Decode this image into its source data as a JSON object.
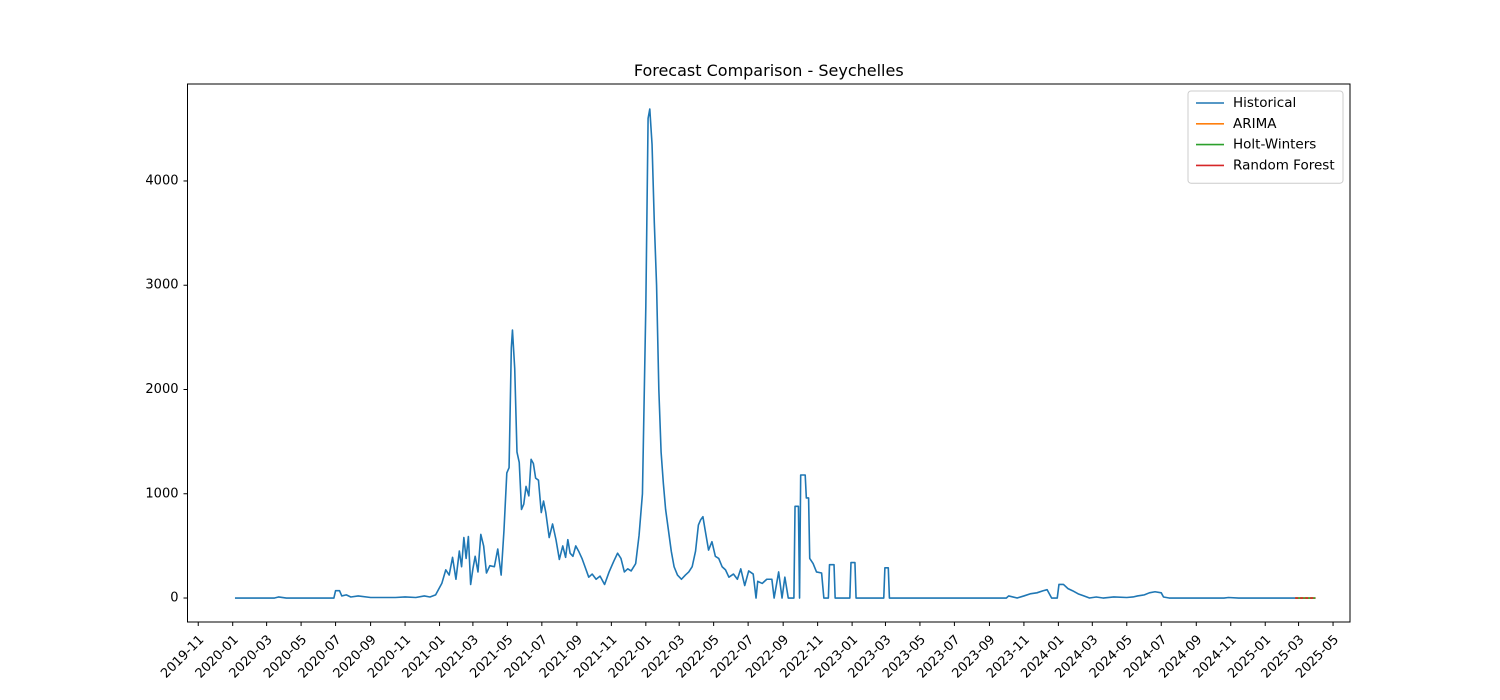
{
  "chart_data": {
    "type": "line",
    "title": "Forecast Comparison - Seychelles",
    "xlabel": "",
    "ylabel": "",
    "xlim": [
      "2019-10-13",
      "2025-05-31"
    ],
    "ylim": [
      -230,
      4930
    ],
    "x_ticks": [
      "2019-11",
      "2020-01",
      "2020-03",
      "2020-05",
      "2020-07",
      "2020-09",
      "2020-11",
      "2021-01",
      "2021-03",
      "2021-05",
      "2021-07",
      "2021-09",
      "2021-11",
      "2022-01",
      "2022-03",
      "2022-05",
      "2022-07",
      "2022-09",
      "2022-11",
      "2023-01",
      "2023-03",
      "2023-05",
      "2023-07",
      "2023-09",
      "2023-11",
      "2024-01",
      "2024-03",
      "2024-05",
      "2024-07",
      "2024-09",
      "2024-11",
      "2025-01",
      "2025-03",
      "2025-05"
    ],
    "y_ticks": [
      0,
      1000,
      2000,
      3000,
      4000
    ],
    "grid": false,
    "legend_position": "top-right",
    "series": [
      {
        "name": "Historical",
        "color": "#1f77b4",
        "points": [
          [
            "2020-01-05",
            0
          ],
          [
            "2020-03-15",
            0
          ],
          [
            "2020-03-22",
            10
          ],
          [
            "2020-04-05",
            0
          ],
          [
            "2020-06-28",
            0
          ],
          [
            "2020-07-01",
            70
          ],
          [
            "2020-07-08",
            70
          ],
          [
            "2020-07-12",
            20
          ],
          [
            "2020-07-20",
            30
          ],
          [
            "2020-07-28",
            10
          ],
          [
            "2020-08-10",
            20
          ],
          [
            "2020-09-01",
            5
          ],
          [
            "2020-10-15",
            5
          ],
          [
            "2020-11-01",
            10
          ],
          [
            "2020-11-20",
            5
          ],
          [
            "2020-12-05",
            20
          ],
          [
            "2020-12-15",
            10
          ],
          [
            "2020-12-25",
            30
          ],
          [
            "2021-01-05",
            140
          ],
          [
            "2021-01-12",
            270
          ],
          [
            "2021-01-18",
            220
          ],
          [
            "2021-01-24",
            390
          ],
          [
            "2021-01-30",
            180
          ],
          [
            "2021-02-05",
            450
          ],
          [
            "2021-02-09",
            300
          ],
          [
            "2021-02-13",
            580
          ],
          [
            "2021-02-17",
            380
          ],
          [
            "2021-02-21",
            590
          ],
          [
            "2021-02-25",
            130
          ],
          [
            "2021-03-01",
            280
          ],
          [
            "2021-03-05",
            400
          ],
          [
            "2021-03-10",
            250
          ],
          [
            "2021-03-15",
            610
          ],
          [
            "2021-03-20",
            500
          ],
          [
            "2021-03-25",
            240
          ],
          [
            "2021-03-31",
            310
          ],
          [
            "2021-04-08",
            300
          ],
          [
            "2021-04-14",
            470
          ],
          [
            "2021-04-20",
            220
          ],
          [
            "2021-04-25",
            650
          ],
          [
            "2021-04-30",
            1200
          ],
          [
            "2021-05-04",
            1250
          ],
          [
            "2021-05-08",
            2400
          ],
          [
            "2021-05-10",
            2570
          ],
          [
            "2021-05-14",
            2200
          ],
          [
            "2021-05-18",
            1400
          ],
          [
            "2021-05-22",
            1300
          ],
          [
            "2021-05-26",
            850
          ],
          [
            "2021-05-30",
            900
          ],
          [
            "2021-06-03",
            1070
          ],
          [
            "2021-06-08",
            980
          ],
          [
            "2021-06-12",
            1330
          ],
          [
            "2021-06-16",
            1290
          ],
          [
            "2021-06-20",
            1150
          ],
          [
            "2021-06-25",
            1130
          ],
          [
            "2021-06-30",
            820
          ],
          [
            "2021-07-04",
            930
          ],
          [
            "2021-07-08",
            820
          ],
          [
            "2021-07-14",
            580
          ],
          [
            "2021-07-20",
            710
          ],
          [
            "2021-07-26",
            560
          ],
          [
            "2021-08-01",
            370
          ],
          [
            "2021-08-07",
            500
          ],
          [
            "2021-08-12",
            390
          ],
          [
            "2021-08-16",
            560
          ],
          [
            "2021-08-20",
            430
          ],
          [
            "2021-08-25",
            400
          ],
          [
            "2021-08-30",
            500
          ],
          [
            "2021-09-04",
            450
          ],
          [
            "2021-09-10",
            380
          ],
          [
            "2021-09-16",
            290
          ],
          [
            "2021-09-22",
            200
          ],
          [
            "2021-09-28",
            230
          ],
          [
            "2021-10-05",
            180
          ],
          [
            "2021-10-12",
            210
          ],
          [
            "2021-10-20",
            130
          ],
          [
            "2021-10-28",
            250
          ],
          [
            "2021-11-05",
            350
          ],
          [
            "2021-11-12",
            430
          ],
          [
            "2021-11-18",
            380
          ],
          [
            "2021-11-24",
            250
          ],
          [
            "2021-11-30",
            280
          ],
          [
            "2021-12-06",
            260
          ],
          [
            "2021-12-14",
            330
          ],
          [
            "2021-12-20",
            600
          ],
          [
            "2021-12-26",
            1000
          ],
          [
            "2022-01-01",
            2800
          ],
          [
            "2022-01-05",
            4600
          ],
          [
            "2022-01-08",
            4690
          ],
          [
            "2022-01-12",
            4350
          ],
          [
            "2022-01-16",
            3600
          ],
          [
            "2022-01-20",
            3000
          ],
          [
            "2022-01-24",
            2000
          ],
          [
            "2022-01-28",
            1400
          ],
          [
            "2022-02-01",
            1100
          ],
          [
            "2022-02-05",
            850
          ],
          [
            "2022-02-10",
            650
          ],
          [
            "2022-02-15",
            450
          ],
          [
            "2022-02-20",
            300
          ],
          [
            "2022-02-26",
            220
          ],
          [
            "2022-03-05",
            180
          ],
          [
            "2022-03-12",
            220
          ],
          [
            "2022-03-18",
            250
          ],
          [
            "2022-03-24",
            300
          ],
          [
            "2022-03-30",
            450
          ],
          [
            "2022-04-04",
            700
          ],
          [
            "2022-04-08",
            750
          ],
          [
            "2022-04-12",
            780
          ],
          [
            "2022-04-16",
            650
          ],
          [
            "2022-04-22",
            460
          ],
          [
            "2022-04-28",
            540
          ],
          [
            "2022-05-04",
            400
          ],
          [
            "2022-05-10",
            380
          ],
          [
            "2022-05-16",
            300
          ],
          [
            "2022-05-22",
            270
          ],
          [
            "2022-05-28",
            200
          ],
          [
            "2022-06-05",
            230
          ],
          [
            "2022-06-12",
            180
          ],
          [
            "2022-06-18",
            280
          ],
          [
            "2022-06-25",
            120
          ],
          [
            "2022-07-02",
            260
          ],
          [
            "2022-07-10",
            230
          ],
          [
            "2022-07-15",
            0
          ],
          [
            "2022-07-18",
            160
          ],
          [
            "2022-07-26",
            140
          ],
          [
            "2022-08-03",
            180
          ],
          [
            "2022-08-12",
            180
          ],
          [
            "2022-08-16",
            0
          ],
          [
            "2022-08-24",
            250
          ],
          [
            "2022-08-30",
            0
          ],
          [
            "2022-09-04",
            200
          ],
          [
            "2022-09-10",
            0
          ],
          [
            "2022-09-20",
            0
          ],
          [
            "2022-09-22",
            880
          ],
          [
            "2022-09-28",
            880
          ],
          [
            "2022-09-30",
            0
          ],
          [
            "2022-10-02",
            1180
          ],
          [
            "2022-10-10",
            1180
          ],
          [
            "2022-10-12",
            960
          ],
          [
            "2022-10-16",
            960
          ],
          [
            "2022-10-18",
            380
          ],
          [
            "2022-10-24",
            330
          ],
          [
            "2022-10-30",
            250
          ],
          [
            "2022-11-08",
            240
          ],
          [
            "2022-11-12",
            0
          ],
          [
            "2022-11-20",
            0
          ],
          [
            "2022-11-22",
            320
          ],
          [
            "2022-11-30",
            320
          ],
          [
            "2022-12-02",
            0
          ],
          [
            "2022-12-28",
            0
          ],
          [
            "2022-12-30",
            340
          ],
          [
            "2023-01-06",
            340
          ],
          [
            "2023-01-08",
            0
          ],
          [
            "2023-02-26",
            0
          ],
          [
            "2023-02-28",
            290
          ],
          [
            "2023-03-06",
            290
          ],
          [
            "2023-03-08",
            0
          ],
          [
            "2023-10-01",
            0
          ],
          [
            "2023-10-05",
            20
          ],
          [
            "2023-10-20",
            0
          ],
          [
            "2023-11-01",
            20
          ],
          [
            "2023-11-12",
            40
          ],
          [
            "2023-11-24",
            50
          ],
          [
            "2023-12-05",
            70
          ],
          [
            "2023-12-12",
            80
          ],
          [
            "2023-12-20",
            0
          ],
          [
            "2023-12-30",
            0
          ],
          [
            "2024-01-02",
            130
          ],
          [
            "2024-01-10",
            130
          ],
          [
            "2024-01-18",
            90
          ],
          [
            "2024-01-26",
            70
          ],
          [
            "2024-02-05",
            40
          ],
          [
            "2024-02-15",
            20
          ],
          [
            "2024-02-25",
            0
          ],
          [
            "2024-03-08",
            10
          ],
          [
            "2024-03-20",
            0
          ],
          [
            "2024-04-08",
            10
          ],
          [
            "2024-05-01",
            5
          ],
          [
            "2024-05-12",
            10
          ],
          [
            "2024-05-20",
            20
          ],
          [
            "2024-06-01",
            30
          ],
          [
            "2024-06-10",
            50
          ],
          [
            "2024-06-20",
            60
          ],
          [
            "2024-07-01",
            50
          ],
          [
            "2024-07-05",
            10
          ],
          [
            "2024-07-15",
            0
          ],
          [
            "2024-10-20",
            0
          ],
          [
            "2024-10-28",
            5
          ],
          [
            "2024-11-15",
            0
          ],
          [
            "2025-02-23",
            0
          ]
        ]
      },
      {
        "name": "ARIMA",
        "color": "#ff7f0e",
        "points": [
          [
            "2025-02-23",
            0
          ],
          [
            "2025-03-31",
            0
          ]
        ]
      },
      {
        "name": "Holt-Winters",
        "color": "#2ca02c",
        "points": [
          [
            "2025-02-23",
            0
          ],
          [
            "2025-03-31",
            0
          ]
        ]
      },
      {
        "name": "Random Forest",
        "color": "#d62728",
        "dashed": true,
        "points": [
          [
            "2025-02-23",
            0
          ],
          [
            "2025-03-31",
            0
          ]
        ]
      }
    ]
  }
}
